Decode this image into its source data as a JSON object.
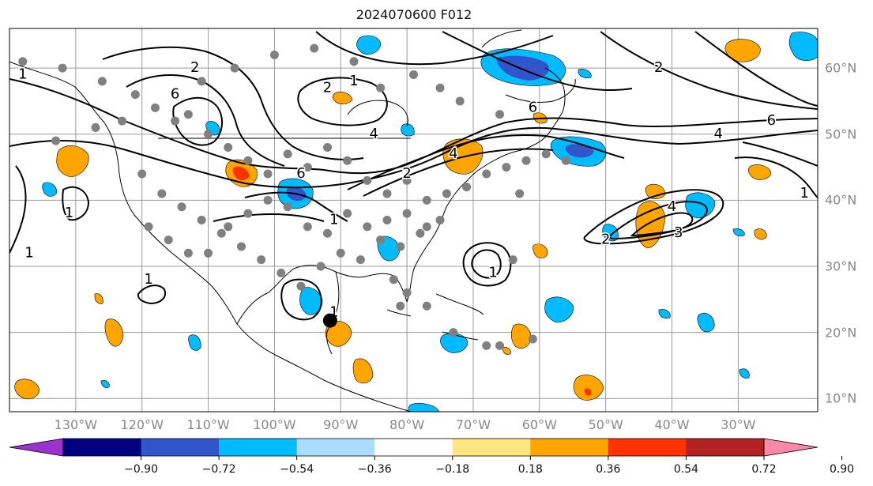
{
  "title": "2024070600 F012",
  "colors": {
    "contour": "#000000",
    "grid": "#9a9a9a",
    "obs_dot": "#808080",
    "storm_center": "#000000",
    "tick_label": "#888888"
  },
  "map": {
    "extent_lon": [
      -140,
      -18
    ],
    "extent_lat": [
      8,
      66
    ],
    "lon_ticks": [
      {
        "value": -130,
        "label": "130°W"
      },
      {
        "value": -120,
        "label": "120°W"
      },
      {
        "value": -110,
        "label": "110°W"
      },
      {
        "value": -100,
        "label": "100°W"
      },
      {
        "value": -90,
        "label": "90°W"
      },
      {
        "value": -80,
        "label": "80°W"
      },
      {
        "value": -70,
        "label": "70°W"
      },
      {
        "value": -60,
        "label": "60°W"
      },
      {
        "value": -50,
        "label": "50°W"
      },
      {
        "value": -40,
        "label": "40°W"
      },
      {
        "value": -30,
        "label": "30°W"
      }
    ],
    "lat_ticks": [
      {
        "value": 60,
        "label": "60°N"
      },
      {
        "value": 50,
        "label": "50°N"
      },
      {
        "value": 40,
        "label": "40°N"
      },
      {
        "value": 30,
        "label": "30°N"
      },
      {
        "value": 20,
        "label": "20°N"
      },
      {
        "value": 10,
        "label": "10°N"
      }
    ],
    "contour_labels": [
      {
        "lon": -138,
        "lat": 59,
        "text": "1"
      },
      {
        "lon": -112,
        "lat": 60,
        "text": "2"
      },
      {
        "lon": -115,
        "lat": 56,
        "text": "6"
      },
      {
        "lon": -92,
        "lat": 57,
        "text": "2"
      },
      {
        "lon": -88,
        "lat": 58,
        "text": "1"
      },
      {
        "lon": -85,
        "lat": 50,
        "text": "4"
      },
      {
        "lon": -73,
        "lat": 47,
        "text": "4"
      },
      {
        "lon": -61,
        "lat": 54,
        "text": "6"
      },
      {
        "lon": -42,
        "lat": 60,
        "text": "2"
      },
      {
        "lon": -33,
        "lat": 50,
        "text": "4"
      },
      {
        "lon": -25,
        "lat": 52,
        "text": "6"
      },
      {
        "lon": -20,
        "lat": 41,
        "text": "1"
      },
      {
        "lon": -40,
        "lat": 39,
        "text": "4"
      },
      {
        "lon": -39,
        "lat": 35,
        "text": "3"
      },
      {
        "lon": -50,
        "lat": 34,
        "text": "2"
      },
      {
        "lon": -137,
        "lat": 32,
        "text": "1"
      },
      {
        "lon": -131,
        "lat": 38,
        "text": "1"
      },
      {
        "lon": -119,
        "lat": 28,
        "text": "1"
      },
      {
        "lon": -91,
        "lat": 23,
        "text": "1"
      },
      {
        "lon": -67,
        "lat": 29,
        "text": "1"
      },
      {
        "lon": -96,
        "lat": 44,
        "text": "6"
      },
      {
        "lon": -80,
        "lat": 44,
        "text": "2"
      },
      {
        "lon": -91,
        "lat": 37,
        "text": "1"
      }
    ],
    "storm_center": {
      "lon": -91.6,
      "lat": 21.8
    },
    "obs_points": [
      [
        -138,
        61
      ],
      [
        -132,
        60
      ],
      [
        -126,
        58
      ],
      [
        -121,
        56
      ],
      [
        -118,
        54
      ],
      [
        -113,
        53
      ],
      [
        -110,
        50
      ],
      [
        -107,
        48
      ],
      [
        -104,
        46
      ],
      [
        -101,
        44
      ],
      [
        -98,
        47
      ],
      [
        -95,
        45
      ],
      [
        -92,
        48
      ],
      [
        -89,
        46
      ],
      [
        -86,
        43
      ],
      [
        -83,
        41
      ],
      [
        -80,
        43
      ],
      [
        -77,
        40
      ],
      [
        -74,
        41
      ],
      [
        -71,
        42
      ],
      [
        -68,
        44
      ],
      [
        -65,
        45
      ],
      [
        -62,
        46
      ],
      [
        -59,
        47
      ],
      [
        -56,
        46
      ],
      [
        -120,
        44
      ],
      [
        -117,
        41
      ],
      [
        -114,
        39
      ],
      [
        -111,
        37
      ],
      [
        -108,
        35
      ],
      [
        -105,
        33
      ],
      [
        -102,
        31
      ],
      [
        -99,
        29
      ],
      [
        -96,
        27
      ],
      [
        -93,
        30
      ],
      [
        -90,
        32
      ],
      [
        -87,
        31
      ],
      [
        -84,
        34
      ],
      [
        -81,
        33
      ],
      [
        -78,
        35
      ],
      [
        -75,
        37
      ],
      [
        -119,
        36
      ],
      [
        -116,
        34
      ],
      [
        -113,
        32
      ],
      [
        -110,
        32
      ],
      [
        -107,
        36
      ],
      [
        -104,
        38
      ],
      [
        -101,
        40
      ],
      [
        -98,
        39
      ],
      [
        -95,
        36
      ],
      [
        -92,
        35
      ],
      [
        -89,
        38
      ],
      [
        -86,
        36
      ],
      [
        -83,
        37
      ],
      [
        -80,
        38
      ],
      [
        -77,
        36
      ],
      [
        -82,
        28
      ],
      [
        -80,
        26
      ],
      [
        -81,
        24
      ],
      [
        -77,
        24
      ],
      [
        -73,
        20
      ],
      [
        -68,
        18
      ],
      [
        -66,
        18
      ],
      [
        -61,
        19
      ],
      [
        -64,
        31
      ],
      [
        -63,
        41
      ],
      [
        -66,
        53
      ],
      [
        -72,
        55
      ],
      [
        -75,
        57
      ],
      [
        -79,
        59
      ],
      [
        -84,
        57
      ],
      [
        -88,
        61
      ],
      [
        -94,
        63
      ],
      [
        -100,
        62
      ],
      [
        -106,
        60
      ],
      [
        -111,
        58
      ],
      [
        -115,
        52
      ],
      [
        -123,
        52
      ],
      [
        -127,
        51
      ],
      [
        -133,
        49
      ]
    ]
  },
  "colorbar": {
    "colors": [
      "#9933cc",
      "#000080",
      "#3355cc",
      "#00bbff",
      "#aaddff",
      "#ffffff",
      "#ffe680",
      "#ffa500",
      "#ff3300",
      "#b22222",
      "#ff88aa"
    ],
    "labels": [
      "−0.90",
      "−0.72",
      "−0.54",
      "−0.36",
      "−0.18",
      "0.18",
      "0.36",
      "0.54",
      "0.72",
      "0.90"
    ]
  }
}
